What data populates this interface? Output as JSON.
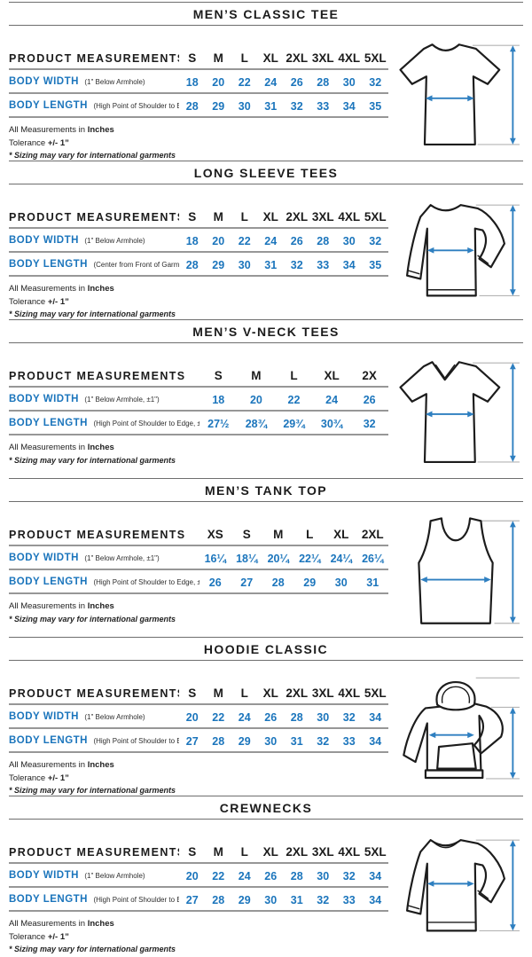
{
  "labels": {
    "product_measurements": "PRODUCT MEASUREMENTS"
  },
  "notes": {
    "measurements_prefix": "All Measurements in",
    "measurements_unit": "Inches",
    "tolerance_prefix": "Tolerance",
    "tolerance_value": "+/- 1”",
    "sizing": "* Sizing may vary for international garments"
  },
  "colors": {
    "measurement_blue": "#1b75bc",
    "arrow_blue": "#2e7fc0",
    "text_black": "#1b1b1b",
    "rule_gray": "#979797"
  },
  "sections": [
    {
      "title": "MEN’S CLASSIC TEE",
      "garment": "tee",
      "has_tolerance": true,
      "sizes": [
        "S",
        "M",
        "L",
        "XL",
        "2XL",
        "3XL",
        "4XL",
        "5XL"
      ],
      "rows": [
        {
          "label": "BODY WIDTH",
          "note": "(1\" Below Armhole)",
          "values": [
            "18",
            "20",
            "22",
            "24",
            "26",
            "28",
            "30",
            "32"
          ]
        },
        {
          "label": "BODY LENGTH",
          "note": "(High Point of Shoulder to Edge)",
          "values": [
            "28",
            "29",
            "30",
            "31",
            "32",
            "33",
            "34",
            "35"
          ]
        }
      ]
    },
    {
      "title": "LONG SLEEVE TEES",
      "garment": "longsleeve",
      "has_tolerance": true,
      "sizes": [
        "S",
        "M",
        "L",
        "XL",
        "2XL",
        "3XL",
        "4XL",
        "5XL"
      ],
      "rows": [
        {
          "label": "BODY WIDTH",
          "note": "(1\" Below Armhole)",
          "values": [
            "18",
            "20",
            "22",
            "24",
            "26",
            "28",
            "30",
            "32"
          ]
        },
        {
          "label": "BODY LENGTH",
          "note": "(Center from Front of Garment)",
          "values": [
            "28",
            "29",
            "30",
            "31",
            "32",
            "33",
            "34",
            "35"
          ]
        }
      ]
    },
    {
      "title": "MEN’S V-NECK TEES",
      "garment": "vneck",
      "has_tolerance": false,
      "sizes": [
        "S",
        "M",
        "L",
        "XL",
        "2X"
      ],
      "rows": [
        {
          "label": "BODY WIDTH",
          "note": "(1\" Below Armhole, ±1\")",
          "values": [
            "18",
            "20",
            "22",
            "24",
            "26"
          ]
        },
        {
          "label": "BODY LENGTH",
          "note": "(High Point of Shoulder to Edge, ±1\")",
          "values": [
            "27½",
            "28¾",
            "29¾",
            "30¾",
            "32"
          ]
        }
      ]
    },
    {
      "title": "MEN’S TANK TOP",
      "garment": "tank",
      "has_tolerance": false,
      "sizes": [
        "XS",
        "S",
        "M",
        "L",
        "XL",
        "2XL"
      ],
      "rows": [
        {
          "label": "BODY WIDTH",
          "note": "(1\" Below Armhole, ±1\")",
          "values": [
            "16¼",
            "18¼",
            "20¼",
            "22¼",
            "24¼",
            "26¼"
          ]
        },
        {
          "label": "BODY LENGTH",
          "note": "(High Point of Shoulder to Edge, ±1\")",
          "values": [
            "26",
            "27",
            "28",
            "29",
            "30",
            "31"
          ]
        }
      ]
    },
    {
      "title": "HOODIE CLASSIC",
      "garment": "hoodie",
      "has_tolerance": true,
      "sizes": [
        "S",
        "M",
        "L",
        "XL",
        "2XL",
        "3XL",
        "4XL",
        "5XL"
      ],
      "rows": [
        {
          "label": "BODY WIDTH",
          "note": "(1\" Below Armhole)",
          "values": [
            "20",
            "22",
            "24",
            "26",
            "28",
            "30",
            "32",
            "34"
          ]
        },
        {
          "label": "BODY LENGTH",
          "note": "(High Point of Shoulder to Edge)",
          "values": [
            "27",
            "28",
            "29",
            "30",
            "31",
            "32",
            "33",
            "34"
          ]
        }
      ]
    },
    {
      "title": "CREWNECKS",
      "garment": "crewneck",
      "has_tolerance": true,
      "sizes": [
        "S",
        "M",
        "L",
        "XL",
        "2XL",
        "3XL",
        "4XL",
        "5XL"
      ],
      "rows": [
        {
          "label": "BODY WIDTH",
          "note": "(1\" Below Armhole)",
          "values": [
            "20",
            "22",
            "24",
            "26",
            "28",
            "30",
            "32",
            "34"
          ]
        },
        {
          "label": "BODY LENGTH",
          "note": "(High Point of Shoulder to Edge)",
          "values": [
            "27",
            "28",
            "29",
            "30",
            "31",
            "32",
            "33",
            "34"
          ]
        }
      ]
    }
  ]
}
